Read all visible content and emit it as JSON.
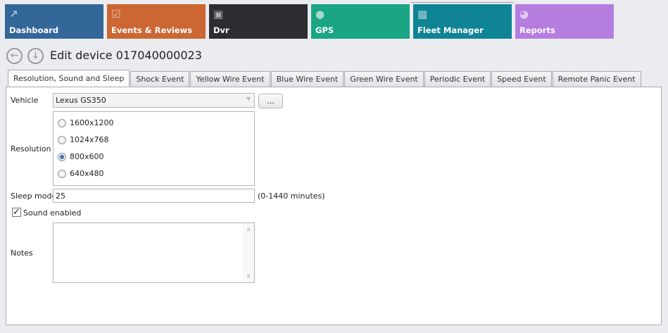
{
  "nav": {
    "tiles": [
      {
        "label": "Dashboard",
        "color": "#336699",
        "icon": "chart-icon"
      },
      {
        "label": "Events & Reviews",
        "color": "#cc6633",
        "icon": "clipboard-icon"
      },
      {
        "label": "Dvr",
        "color": "#2b2d31",
        "icon": "merge-logo-icon"
      },
      {
        "label": "GPS",
        "color": "#1aa585",
        "icon": "map-pin-icon"
      },
      {
        "label": "Fleet Manager",
        "color": "#0e8494",
        "icon": "cars-icon",
        "selected": true
      },
      {
        "label": "Reports",
        "color": "#b57de0",
        "icon": "pie-chart-icon"
      }
    ]
  },
  "header": {
    "title": "Edit device 017040000023"
  },
  "tabs": [
    "Resolution, Sound and Sleep",
    "Shock Event",
    "Yellow Wire Event",
    "Blue Wire Event",
    "Green Wire Event",
    "Periodic Event",
    "Speed Event",
    "Remote Panic Event"
  ],
  "form": {
    "vehicle_label": "Vehicle",
    "vehicle_value": "Lexus GS350",
    "browse_label": "...",
    "resolution_label": "Resolution",
    "resolutions": [
      "1600x1200",
      "1024x768",
      "800x600",
      "640x480"
    ],
    "resolution_selected": "800x600",
    "sleep_label": "Sleep mode",
    "sleep_value": "25",
    "sleep_hint": "(0-1440 minutes)",
    "sound_label": "Sound enabled",
    "sound_checked": true,
    "notes_label": "Notes",
    "notes_value": ""
  }
}
